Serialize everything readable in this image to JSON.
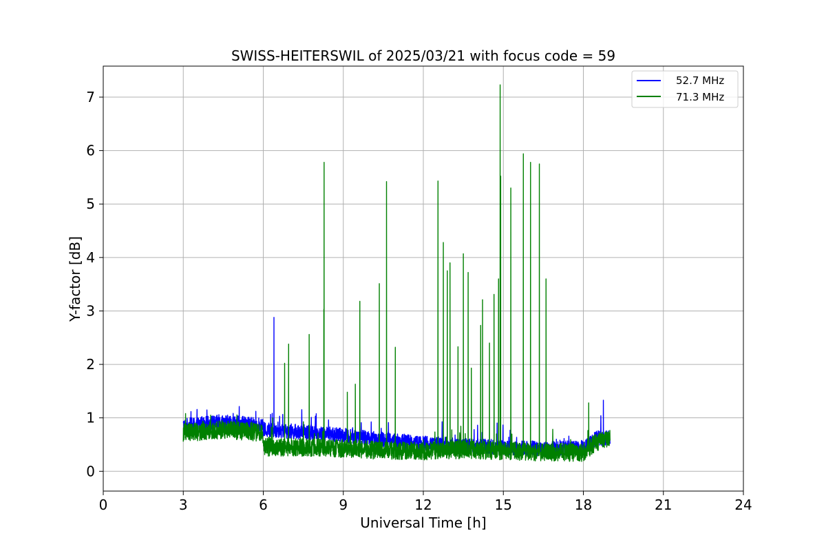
{
  "chart_data": {
    "type": "line",
    "title": "SWISS-HEITERSWIL of 2025/03/21 with focus code = 59",
    "xlabel": "Universal Time [h]",
    "ylabel": "Y-factor [dB]",
    "xlim": [
      0,
      24
    ],
    "ylim": [
      -0.37,
      7.58
    ],
    "xticks": [
      0,
      3,
      6,
      9,
      12,
      15,
      18,
      21,
      24
    ],
    "xtick_labels": [
      "0",
      "3",
      "6",
      "9",
      "12",
      "15",
      "18",
      "21",
      "24"
    ],
    "yticks": [
      0,
      1,
      2,
      3,
      4,
      5,
      6,
      7
    ],
    "ytick_labels": [
      "0",
      "1",
      "2",
      "3",
      "4",
      "5",
      "6",
      "7"
    ],
    "grid": true,
    "legend_position": "top-right",
    "series": [
      {
        "name": "52.7 MHz",
        "color": "#0000ff",
        "baseline": [
          [
            3.0,
            0.85
          ],
          [
            4.5,
            0.92
          ],
          [
            5.95,
            0.86
          ],
          [
            6.0,
            0.78
          ],
          [
            8.0,
            0.72
          ],
          [
            10.0,
            0.62
          ],
          [
            12.0,
            0.52
          ],
          [
            13.5,
            0.48
          ],
          [
            15.0,
            0.45
          ],
          [
            16.5,
            0.42
          ],
          [
            18.0,
            0.44
          ],
          [
            18.5,
            0.62
          ],
          [
            19.0,
            0.62
          ]
        ],
        "spikes": [
          [
            6.4,
            2.88
          ],
          [
            18.75,
            1.33
          ]
        ]
      },
      {
        "name": "71.3 MHz",
        "color": "#008000",
        "baseline": [
          [
            3.0,
            0.72
          ],
          [
            4.5,
            0.78
          ],
          [
            5.95,
            0.72
          ],
          [
            6.0,
            0.45
          ],
          [
            8.0,
            0.45
          ],
          [
            10.0,
            0.4
          ],
          [
            12.0,
            0.38
          ],
          [
            13.5,
            0.4
          ],
          [
            15.0,
            0.38
          ],
          [
            16.5,
            0.36
          ],
          [
            18.0,
            0.35
          ],
          [
            18.5,
            0.55
          ],
          [
            19.0,
            0.6
          ]
        ],
        "spikes": [
          [
            6.35,
            1.0
          ],
          [
            6.8,
            2.02
          ],
          [
            6.95,
            2.38
          ],
          [
            7.72,
            2.56
          ],
          [
            8.28,
            5.78
          ],
          [
            8.27,
            3.03
          ],
          [
            9.15,
            1.48
          ],
          [
            9.45,
            1.63
          ],
          [
            9.62,
            3.18
          ],
          [
            10.35,
            3.51
          ],
          [
            10.62,
            5.42
          ],
          [
            10.95,
            2.32
          ],
          [
            12.55,
            5.43
          ],
          [
            12.75,
            4.28
          ],
          [
            12.9,
            3.75
          ],
          [
            13.0,
            3.9
          ],
          [
            13.3,
            2.33
          ],
          [
            13.5,
            4.07
          ],
          [
            13.68,
            3.72
          ],
          [
            13.8,
            1.93
          ],
          [
            14.15,
            2.73
          ],
          [
            14.22,
            3.21
          ],
          [
            14.48,
            2.4
          ],
          [
            14.65,
            3.31
          ],
          [
            14.82,
            3.6
          ],
          [
            14.88,
            7.23
          ],
          [
            14.9,
            5.52
          ],
          [
            15.28,
            5.3
          ],
          [
            15.75,
            5.94
          ],
          [
            16.02,
            5.78
          ],
          [
            16.35,
            5.75
          ],
          [
            16.6,
            3.6
          ],
          [
            18.2,
            1.28
          ]
        ]
      }
    ]
  }
}
